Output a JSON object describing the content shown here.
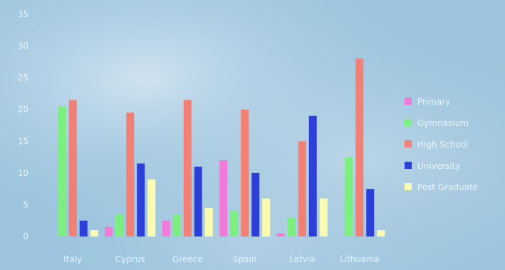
{
  "chart_data": {
    "type": "bar",
    "title": "",
    "xlabel": "",
    "ylabel": "",
    "ylim": [
      0,
      35
    ],
    "yticks": [
      0,
      5,
      10,
      15,
      20,
      25,
      30,
      35
    ],
    "grid": false,
    "legend_position": "right",
    "categories": [
      "Italy",
      "Cyprus",
      "Greece",
      "Spain",
      "Latvia",
      "Lithuania"
    ],
    "series": [
      {
        "name": "Primary",
        "color": "#f07ad8",
        "values": [
          0,
          1.5,
          2.5,
          12,
          0.5,
          0
        ]
      },
      {
        "name": "Gymnasium",
        "color": "#7cf07e",
        "values": [
          20.5,
          3.5,
          3.5,
          4,
          3,
          12.5
        ]
      },
      {
        "name": "High School",
        "color": "#f38074",
        "values": [
          21.5,
          19.5,
          21.5,
          20,
          15,
          28
        ]
      },
      {
        "name": "University",
        "color": "#2d3fd9",
        "values": [
          2.5,
          11.5,
          11,
          10,
          19,
          7.5
        ]
      },
      {
        "name": "Post Graduate",
        "color": "#fbfbb0",
        "values": [
          1,
          9,
          4.5,
          6,
          6,
          1
        ]
      }
    ]
  }
}
